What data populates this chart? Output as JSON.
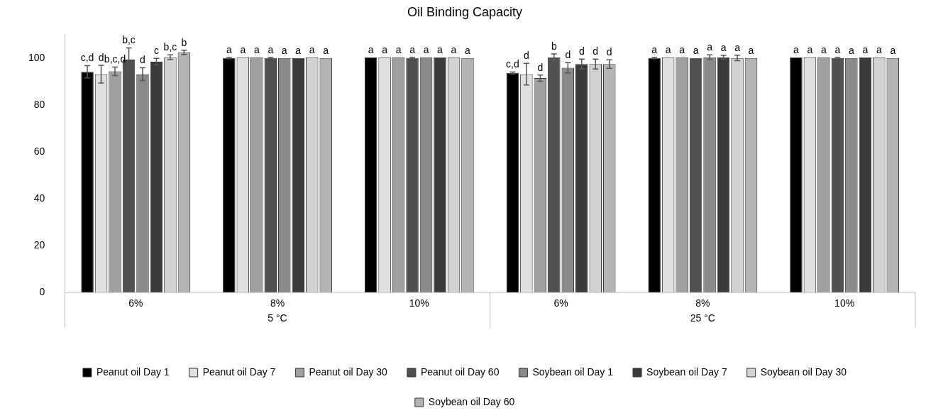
{
  "chart_data": {
    "type": "bar",
    "title": "Oil Binding Capacity",
    "categories": [
      "6%",
      "8%",
      "10%",
      "6%",
      "8%",
      "10%"
    ],
    "annotations": [
      "5 °C",
      "25 °C"
    ],
    "ylim": [
      0,
      110
    ],
    "yticks": [
      0,
      20,
      40,
      60,
      80,
      100
    ],
    "grid": false,
    "legend": "bottom",
    "series": [
      {
        "name": "Peanut oil Day 1",
        "color": "#000000",
        "values": [
          94.1,
          100.0,
          100.3,
          93.6,
          100.0,
          100.3
        ],
        "errors": [
          2.6,
          0.3,
          null,
          0.4,
          0.3,
          null
        ],
        "value_labels": [
          "c,d",
          "a",
          "a",
          "c,d",
          "a",
          "a"
        ]
      },
      {
        "name": "Peanut oil Day 7",
        "color": "#e0e0e0",
        "values": [
          93.1,
          100.3,
          100.3,
          93.1,
          100.3,
          100.3
        ],
        "errors": [
          3.8,
          null,
          null,
          4.6,
          null,
          null
        ],
        "value_labels": [
          "d",
          "a",
          "a",
          "d",
          "a",
          "a"
        ]
      },
      {
        "name": "Peanut oil Day 30",
        "color": "#a0a0a0",
        "values": [
          94.3,
          100.3,
          100.3,
          91.4,
          100.3,
          100.3
        ],
        "errors": [
          1.8,
          null,
          null,
          1.3,
          null,
          null
        ],
        "value_labels": [
          "b,c,d",
          "a",
          "a",
          "d",
          "a",
          "a"
        ]
      },
      {
        "name": "Peanut oil Day 60",
        "color": "#505050",
        "values": [
          99.3,
          100.0,
          100.0,
          100.3,
          100.0,
          100.0
        ],
        "errors": [
          5.0,
          0.3,
          0.3,
          1.4,
          null,
          0.3
        ],
        "value_labels": [
          "b,c",
          "a",
          "a",
          "b",
          "a",
          "a"
        ]
      },
      {
        "name": "Soybean oil Day 1",
        "color": "#8a8a8a",
        "values": [
          93.1,
          100.0,
          100.3,
          95.8,
          100.3,
          100.0
        ],
        "errors": [
          2.7,
          null,
          null,
          2.2,
          1.0,
          null
        ],
        "value_labels": [
          "d",
          "a",
          "a",
          "d",
          "a",
          "a"
        ]
      },
      {
        "name": "Soybean oil Day 7",
        "color": "#3a3a3a",
        "values": [
          98.4,
          100.0,
          100.3,
          97.4,
          100.3,
          100.3
        ],
        "errors": [
          1.4,
          null,
          null,
          2.1,
          0.8,
          null
        ],
        "value_labels": [
          "c",
          "a",
          "a",
          "d",
          "a",
          "a"
        ]
      },
      {
        "name": "Soybean oil Day 30",
        "color": "#d2d2d2",
        "values": [
          100.3,
          100.3,
          100.3,
          97.4,
          100.0,
          100.3
        ],
        "errors": [
          1.0,
          null,
          null,
          2.1,
          1.2,
          null
        ],
        "value_labels": [
          "b,c",
          "a",
          "a",
          "d",
          "a",
          "a"
        ]
      },
      {
        "name": "Soybean oil Day 60",
        "color": "#b4b4b4",
        "values": [
          102.4,
          100.0,
          100.0,
          97.4,
          100.0,
          100.0
        ],
        "errors": [
          0.9,
          null,
          null,
          1.8,
          null,
          null
        ],
        "value_labels": [
          "b",
          "a",
          "a",
          "d",
          "a",
          "a"
        ]
      }
    ]
  }
}
